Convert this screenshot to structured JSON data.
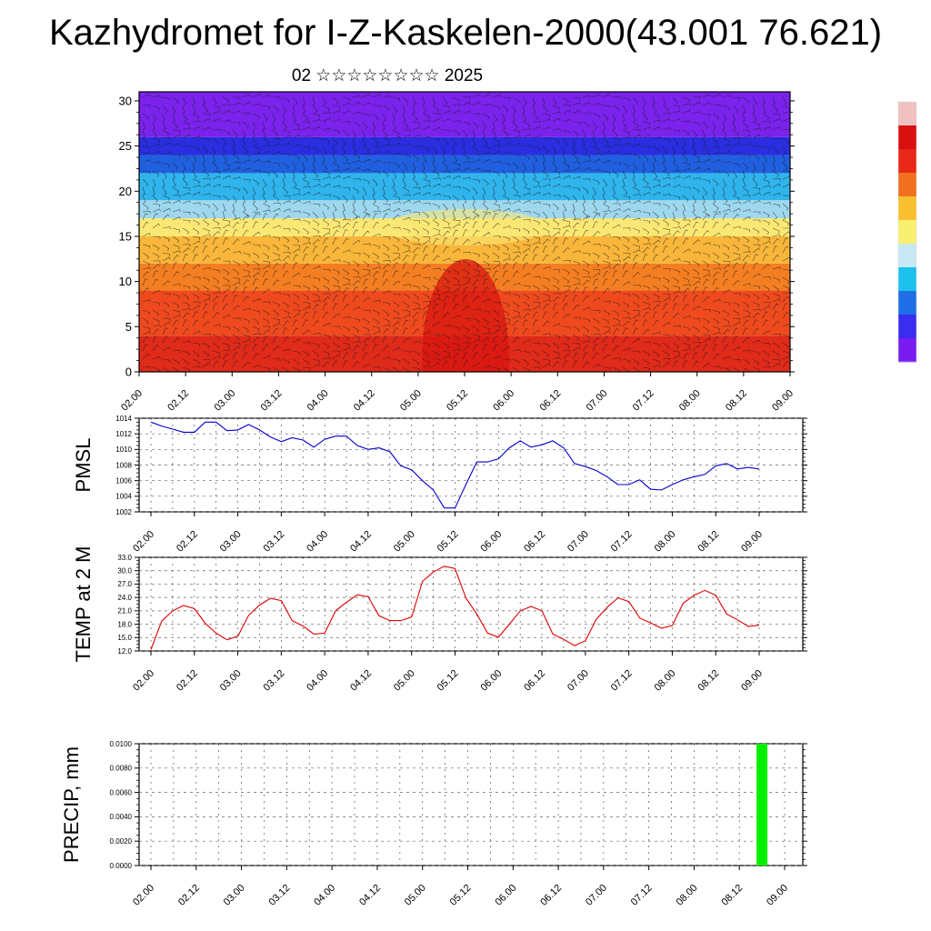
{
  "header": {
    "title": "Kazhydromet for I-Z-Kaskelen-2000(43.001 76.621)",
    "subtitle": "02 ☆☆☆☆☆☆☆☆ 2025"
  },
  "colors": {
    "pmsl_line": "#0000cc",
    "temp_line": "#dd0000",
    "precip_bar": "#00ee00",
    "colorbar": [
      "#7a1cf0",
      "#3a2cf0",
      "#1e6fe6",
      "#1ec0ee",
      "#c8e8f4",
      "#f8f070",
      "#f8c030",
      "#f07020",
      "#e82818",
      "#d81010",
      "#f0c0c0"
    ]
  },
  "chart_data": [
    {
      "type": "heatmap",
      "name_key": "cross_section",
      "x_ticks": [
        "02.00",
        "02.12",
        "03.00",
        "03.12",
        "04.00",
        "04.12",
        "05.00",
        "05.12",
        "06.00",
        "06.12",
        "07.00",
        "07.12",
        "08.00",
        "08.12",
        "09.00"
      ],
      "y_ticks": [
        "0",
        "5",
        "10",
        "15",
        "20",
        "25",
        "30"
      ],
      "ylim": [
        0,
        31
      ],
      "layers": [
        {
          "from": 0,
          "to": 4,
          "color": "#e02a1a"
        },
        {
          "from": 4,
          "to": 9,
          "color": "#ef4a1e"
        },
        {
          "from": 9,
          "to": 12,
          "color": "#f47f22"
        },
        {
          "from": 12,
          "to": 15,
          "color": "#f8b63a"
        },
        {
          "from": 15,
          "to": 17,
          "color": "#fbe874"
        },
        {
          "from": 17,
          "to": 19,
          "color": "#9fd8ee"
        },
        {
          "from": 19,
          "to": 22,
          "color": "#30b4ec"
        },
        {
          "from": 22,
          "to": 24,
          "color": "#2060e0"
        },
        {
          "from": 24,
          "to": 26,
          "color": "#2a2ee0"
        },
        {
          "from": 26,
          "to": 31,
          "color": "#7b22ec"
        }
      ]
    },
    {
      "type": "line",
      "name_key": "pmsl",
      "ylabel": "PMSL",
      "x_ticks": [
        "02.00",
        "02.12",
        "03.00",
        "03.12",
        "04.00",
        "04.12",
        "05.00",
        "05.12",
        "06.00",
        "06.12",
        "07.00",
        "07.12",
        "08.00",
        "08.12",
        "09.00"
      ],
      "y_ticks": [
        "1002",
        "1004",
        "1006",
        "1008",
        "1010",
        "1012",
        "1014"
      ],
      "ylim": [
        1002,
        1014
      ],
      "x": [
        0,
        3,
        6,
        9,
        12,
        15,
        18,
        21,
        24,
        27,
        30,
        33,
        36,
        39,
        42,
        45,
        48,
        51,
        54,
        57,
        60,
        63,
        66,
        69,
        72,
        75,
        78,
        81,
        84,
        87,
        90,
        93,
        96,
        99,
        102,
        105,
        108,
        111,
        114,
        117,
        120,
        123,
        126,
        129,
        132,
        135,
        138,
        141,
        144,
        147,
        150,
        153,
        156,
        159,
        162,
        165,
        168
      ],
      "values": [
        1013.5,
        1013.0,
        1012.6,
        1012.2,
        1012.2,
        1013.5,
        1013.5,
        1012.4,
        1012.5,
        1013.2,
        1012.5,
        1011.6,
        1011.0,
        1011.5,
        1011.2,
        1010.3,
        1011.3,
        1011.7,
        1011.7,
        1010.5,
        1010.0,
        1010.2,
        1009.7,
        1007.9,
        1007.4,
        1006.0,
        1004.8,
        1002.5,
        1002.5,
        1005.5,
        1008.4,
        1008.4,
        1008.8,
        1010.2,
        1011.1,
        1010.3,
        1010.6,
        1011.1,
        1010.2,
        1008.2,
        1007.8,
        1007.3,
        1006.5,
        1005.5,
        1005.5,
        1006.1,
        1004.9,
        1004.8,
        1005.5,
        1006.1,
        1006.5,
        1006.8,
        1007.9,
        1008.2,
        1007.5,
        1007.7,
        1007.5
      ]
    },
    {
      "type": "line",
      "name_key": "temp",
      "ylabel": "TEMP at 2 M",
      "x_ticks": [
        "02.00",
        "02.12",
        "03.00",
        "03.12",
        "04.00",
        "04.12",
        "05.00",
        "05.12",
        "06.00",
        "06.12",
        "07.00",
        "07.12",
        "08.00",
        "08.12",
        "09.00"
      ],
      "y_ticks": [
        "12.0",
        "15.0",
        "18.0",
        "21.0",
        "24.0",
        "27.0",
        "30.0",
        "33.0"
      ],
      "ylim": [
        12,
        33
      ],
      "x": [
        0,
        3,
        6,
        9,
        12,
        15,
        18,
        21,
        24,
        27,
        30,
        33,
        36,
        39,
        42,
        45,
        48,
        51,
        54,
        57,
        60,
        63,
        66,
        69,
        72,
        75,
        78,
        81,
        84,
        87,
        90,
        93,
        96,
        99,
        102,
        105,
        108,
        111,
        114,
        117,
        120,
        123,
        126,
        129,
        132,
        135,
        138,
        141,
        144,
        147,
        150,
        153,
        156,
        159,
        162,
        165,
        168
      ],
      "values": [
        12.3,
        18.7,
        21.0,
        22.2,
        21.5,
        18.2,
        16.0,
        14.5,
        15.3,
        20.0,
        22.3,
        23.8,
        23.3,
        18.8,
        17.6,
        15.8,
        16.0,
        21.0,
        22.9,
        24.6,
        24.2,
        19.9,
        18.8,
        18.8,
        19.6,
        27.6,
        29.7,
        31.0,
        30.5,
        23.9,
        20.3,
        16.0,
        15.1,
        18.0,
        21.0,
        22.0,
        21.0,
        15.8,
        14.6,
        13.2,
        14.3,
        19.1,
        21.8,
        23.9,
        23.1,
        19.4,
        18.3,
        17.1,
        17.7,
        22.7,
        24.5,
        25.6,
        24.5,
        20.3,
        19.0,
        17.5,
        17.8
      ]
    },
    {
      "type": "bar",
      "name_key": "precip",
      "ylabel": "PRECIP, mm",
      "x_ticks": [
        "02.00",
        "02.12",
        "03.00",
        "03.12",
        "04.00",
        "04.12",
        "05.00",
        "05.12",
        "06.00",
        "06.12",
        "07.00",
        "07.12",
        "08.00",
        "08.12",
        "09.00"
      ],
      "y_ticks": [
        "0.0000",
        "0.0020",
        "0.0040",
        "0.0060",
        "0.0080",
        "0.0100"
      ],
      "ylim": [
        0,
        0.01
      ],
      "bars": [
        {
          "x": 162,
          "value": 0.01
        }
      ]
    }
  ]
}
